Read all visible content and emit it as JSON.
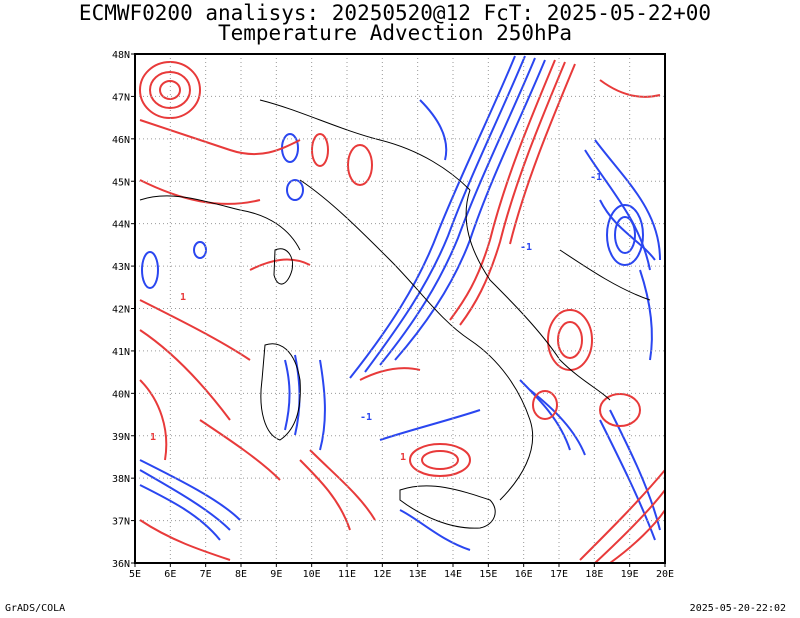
{
  "title_line1": "ECMWF0200 analisys: 20250520@12 FcT: 2025-05-22+00",
  "title_line2": "Temperature Advection 250hPa",
  "footer_left": "GrADS/COLA",
  "footer_right": "2025-05-20-22:02",
  "map": {
    "lon_range": [
      5,
      20
    ],
    "lat_range": [
      36,
      48
    ],
    "lon_ticks": [
      "5E",
      "6E",
      "7E",
      "8E",
      "9E",
      "10E",
      "11E",
      "12E",
      "13E",
      "14E",
      "15E",
      "16E",
      "17E",
      "18E",
      "19E",
      "20E"
    ],
    "lat_ticks": [
      "36N",
      "37N",
      "38N",
      "39N",
      "40N",
      "41N",
      "42N",
      "43N",
      "44N",
      "45N",
      "46N",
      "47N",
      "48N"
    ],
    "contour_colors": {
      "positive": "#e83a3a",
      "negative": "#2a46f0",
      "coast": "#000000",
      "grid": "#9a9a9a"
    },
    "contour_labels": {
      "positive": "1",
      "negative": "-1"
    }
  }
}
